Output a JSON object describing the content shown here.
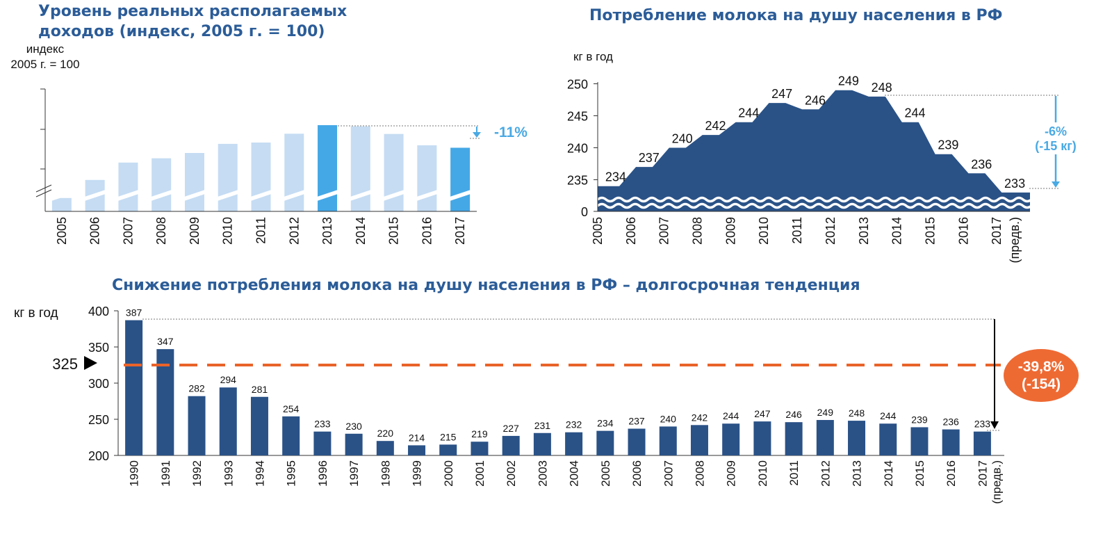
{
  "colors": {
    "title": "#2b5c98",
    "dark_bar": "#2a5287",
    "light_bar": "#c5dcf3",
    "bright_bar": "#45a8e6",
    "accent_blue": "#49a9e3",
    "dashed_line": "#e9632a",
    "badge": "#ee6a33"
  },
  "chart_data": [
    {
      "id": "real-income",
      "type": "bar",
      "title": "Уровень реальных располагаемых доходов (индекс, 2005 г. = 100)",
      "title_lines": [
        "Уровень реальных располагаемых",
        "доходов (индекс, 2005 г. = 100)"
      ],
      "ylabel_lines": [
        "индекс",
        "2005 г. = 100"
      ],
      "categories": [
        "2005",
        "2006",
        "2007",
        "2008",
        "2009",
        "2010",
        "2011",
        "2012",
        "2013",
        "2014",
        "2015",
        "2016",
        "2017"
      ],
      "values": [
        100,
        113.5,
        126.5,
        129.7,
        133.7,
        140.5,
        141.5,
        148.1,
        154.5,
        153.6,
        147.9,
        139.4,
        137.6
      ],
      "highlighted": [
        "2013",
        "2017"
      ],
      "ylim": [
        0,
        160
      ],
      "axis_break": true,
      "y_tick_labels_shown": false,
      "annotation": "-11%"
    },
    {
      "id": "milk-per-capita-recent",
      "type": "area",
      "title": "Потребление молока на душу населения в РФ",
      "ylabel": "кг в год",
      "categories": [
        "2005",
        "2006",
        "2007",
        "2008",
        "2009",
        "2010",
        "2011",
        "2012",
        "2013",
        "2014",
        "2015",
        "2016",
        "2017"
      ],
      "last_category_note": "(предв.)",
      "values": [
        234,
        237,
        240,
        242,
        244,
        247,
        246,
        249,
        248,
        244,
        239,
        236,
        233
      ],
      "y_ticks": [
        0,
        235,
        240,
        245,
        250
      ],
      "axis_break": true,
      "annotation_lines": [
        "-6%",
        "(-15 кг)"
      ]
    },
    {
      "id": "milk-per-capita-long-term",
      "type": "bar",
      "title": "Снижение потребления молока на душу населения в РФ – долгосрочная тенденция",
      "ylabel": "кг в год",
      "categories": [
        "1990",
        "1991",
        "1992",
        "1993",
        "1994",
        "1995",
        "1996",
        "1997",
        "1998",
        "1999",
        "2000",
        "2001",
        "2002",
        "2003",
        "2004",
        "2005",
        "2006",
        "2007",
        "2008",
        "2009",
        "2010",
        "2011",
        "2012",
        "2013",
        "2014",
        "2015",
        "2016",
        "2017"
      ],
      "last_category_note": "(предв.)",
      "values": [
        387,
        347,
        282,
        294,
        281,
        254,
        233,
        230,
        220,
        214,
        215,
        219,
        227,
        231,
        232,
        234,
        237,
        240,
        242,
        244,
        247,
        246,
        249,
        248,
        244,
        239,
        236,
        233
      ],
      "y_ticks": [
        200,
        250,
        300,
        350,
        400
      ],
      "ylim": [
        200,
        400
      ],
      "reference_line": {
        "value": 325,
        "label": "325"
      },
      "badge_lines": [
        "-39,8%",
        "(-154)"
      ]
    }
  ]
}
